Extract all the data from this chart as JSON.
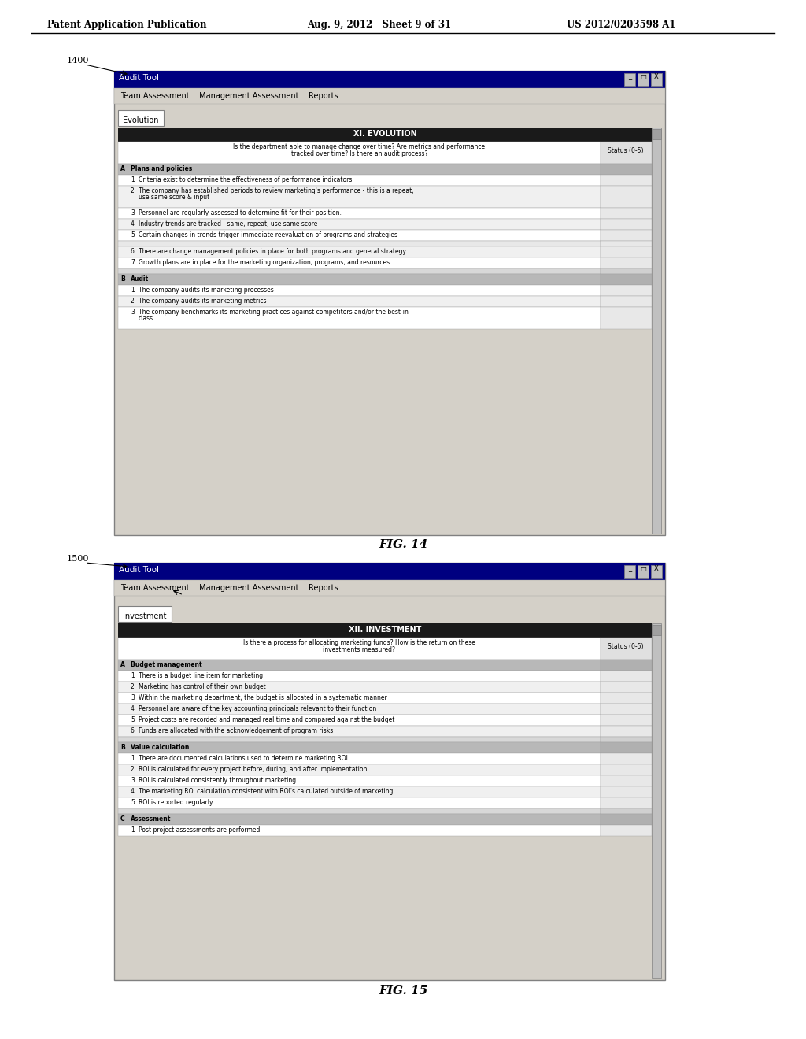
{
  "header_left": "Patent Application Publication",
  "header_mid": "Aug. 9, 2012   Sheet 9 of 31",
  "header_right": "US 2012/0203598 A1",
  "fig14_label": "1400",
  "fig14_caption": "FIG. 14",
  "fig15_label": "1500",
  "fig15_caption": "FIG. 15",
  "window_title": "Audit Tool",
  "menu_items": "Team Assessment    Management Assessment    Reports",
  "tab1": "Evolution",
  "tab2": "Investment",
  "fig14_header": "XI. EVOLUTION",
  "fig15_header": "XII. INVESTMENT",
  "bg_color": "#ffffff",
  "window_bg": "#d4d0c8",
  "titlebar_bg": "#000080",
  "titlebar_text": "#ffffff",
  "menu_bg": "#d4d0c8",
  "table_header_bg": "#1a1a1a",
  "table_header_text": "#ffffff",
  "section_row_bg": "#c0c0c0",
  "alt_row_bg": "#e8e8e8",
  "white_row_bg": "#ffffff",
  "border_color": "#808080",
  "text_color": "#000000"
}
